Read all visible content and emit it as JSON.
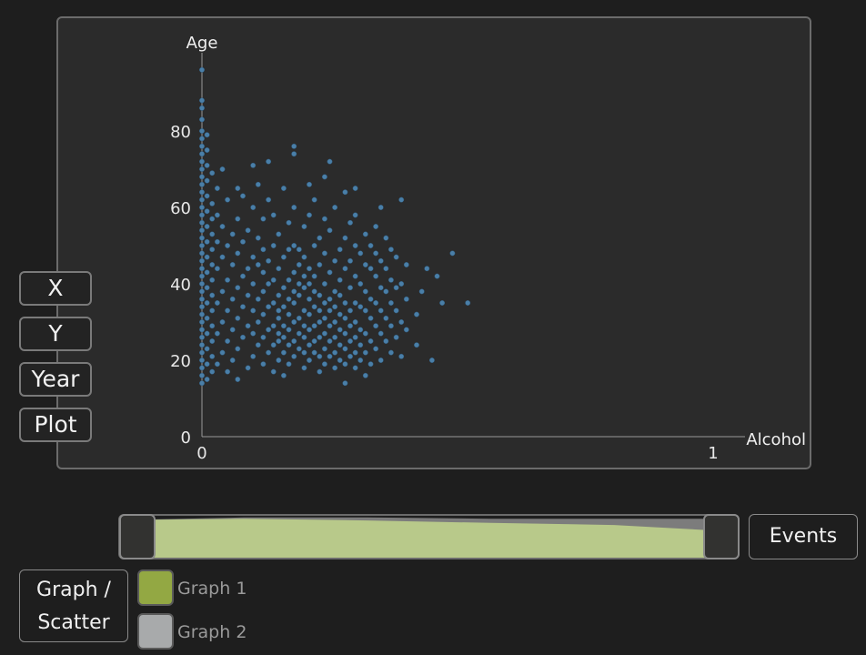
{
  "axis_buttons": {
    "x": "X",
    "y": "Y",
    "year": "Year",
    "plot": "Plot"
  },
  "chart_data": {
    "type": "scatter",
    "xlabel": "Alcohol",
    "ylabel": "Age",
    "xlim": [
      0,
      1
    ],
    "ylim": [
      0,
      100
    ],
    "x_ticks": [
      "0",
      "1"
    ],
    "y_ticks": [
      "0",
      "20",
      "40",
      "60",
      "80"
    ],
    "point_color": "#4a7fa8",
    "points": [
      [
        0.0,
        14
      ],
      [
        0.0,
        16
      ],
      [
        0.0,
        18
      ],
      [
        0.0,
        20
      ],
      [
        0.0,
        22
      ],
      [
        0.0,
        24
      ],
      [
        0.0,
        26
      ],
      [
        0.0,
        28
      ],
      [
        0.0,
        30
      ],
      [
        0.0,
        32
      ],
      [
        0.0,
        34
      ],
      [
        0.0,
        36
      ],
      [
        0.0,
        38
      ],
      [
        0.0,
        40
      ],
      [
        0.0,
        42
      ],
      [
        0.0,
        44
      ],
      [
        0.0,
        46
      ],
      [
        0.0,
        48
      ],
      [
        0.0,
        50
      ],
      [
        0.0,
        52
      ],
      [
        0.0,
        54
      ],
      [
        0.0,
        56
      ],
      [
        0.0,
        58
      ],
      [
        0.0,
        60
      ],
      [
        0.0,
        62
      ],
      [
        0.0,
        64
      ],
      [
        0.0,
        66
      ],
      [
        0.0,
        68
      ],
      [
        0.0,
        70
      ],
      [
        0.0,
        72
      ],
      [
        0.0,
        74
      ],
      [
        0.0,
        76
      ],
      [
        0.0,
        78
      ],
      [
        0.0,
        80
      ],
      [
        0.0,
        83
      ],
      [
        0.0,
        86
      ],
      [
        0.0,
        88
      ],
      [
        0.0,
        96
      ],
      [
        0.01,
        15
      ],
      [
        0.01,
        19
      ],
      [
        0.01,
        23
      ],
      [
        0.01,
        27
      ],
      [
        0.01,
        31
      ],
      [
        0.01,
        35
      ],
      [
        0.01,
        39
      ],
      [
        0.01,
        43
      ],
      [
        0.01,
        47
      ],
      [
        0.01,
        51
      ],
      [
        0.01,
        55
      ],
      [
        0.01,
        59
      ],
      [
        0.01,
        63
      ],
      [
        0.01,
        67
      ],
      [
        0.01,
        71
      ],
      [
        0.01,
        75
      ],
      [
        0.01,
        79
      ],
      [
        0.02,
        17
      ],
      [
        0.02,
        21
      ],
      [
        0.02,
        25
      ],
      [
        0.02,
        29
      ],
      [
        0.02,
        33
      ],
      [
        0.02,
        37
      ],
      [
        0.02,
        41
      ],
      [
        0.02,
        45
      ],
      [
        0.02,
        49
      ],
      [
        0.02,
        53
      ],
      [
        0.02,
        57
      ],
      [
        0.02,
        61
      ],
      [
        0.02,
        69
      ],
      [
        0.03,
        19
      ],
      [
        0.03,
        27
      ],
      [
        0.03,
        35
      ],
      [
        0.03,
        44
      ],
      [
        0.03,
        51
      ],
      [
        0.03,
        58
      ],
      [
        0.03,
        65
      ],
      [
        0.04,
        22
      ],
      [
        0.04,
        30
      ],
      [
        0.04,
        38
      ],
      [
        0.04,
        47
      ],
      [
        0.04,
        55
      ],
      [
        0.04,
        70
      ],
      [
        0.05,
        17
      ],
      [
        0.05,
        25
      ],
      [
        0.05,
        33
      ],
      [
        0.05,
        41
      ],
      [
        0.05,
        50
      ],
      [
        0.05,
        62
      ],
      [
        0.06,
        20
      ],
      [
        0.06,
        28
      ],
      [
        0.06,
        36
      ],
      [
        0.06,
        45
      ],
      [
        0.06,
        53
      ],
      [
        0.07,
        15
      ],
      [
        0.07,
        23
      ],
      [
        0.07,
        31
      ],
      [
        0.07,
        39
      ],
      [
        0.07,
        48
      ],
      [
        0.07,
        57
      ],
      [
        0.07,
        65
      ],
      [
        0.08,
        26
      ],
      [
        0.08,
        34
      ],
      [
        0.08,
        42
      ],
      [
        0.08,
        51
      ],
      [
        0.08,
        63
      ],
      [
        0.09,
        18
      ],
      [
        0.09,
        29
      ],
      [
        0.09,
        37
      ],
      [
        0.09,
        44
      ],
      [
        0.09,
        54
      ],
      [
        0.1,
        21
      ],
      [
        0.1,
        27
      ],
      [
        0.1,
        33
      ],
      [
        0.1,
        40
      ],
      [
        0.1,
        47
      ],
      [
        0.1,
        60
      ],
      [
        0.1,
        71
      ],
      [
        0.11,
        24
      ],
      [
        0.11,
        30
      ],
      [
        0.11,
        36
      ],
      [
        0.11,
        45
      ],
      [
        0.11,
        52
      ],
      [
        0.11,
        66
      ],
      [
        0.12,
        19
      ],
      [
        0.12,
        26
      ],
      [
        0.12,
        32
      ],
      [
        0.12,
        38
      ],
      [
        0.12,
        43
      ],
      [
        0.12,
        49
      ],
      [
        0.12,
        57
      ],
      [
        0.13,
        22
      ],
      [
        0.13,
        28
      ],
      [
        0.13,
        34
      ],
      [
        0.13,
        40
      ],
      [
        0.13,
        46
      ],
      [
        0.13,
        62
      ],
      [
        0.13,
        72
      ],
      [
        0.14,
        17
      ],
      [
        0.14,
        24
      ],
      [
        0.14,
        29
      ],
      [
        0.14,
        35
      ],
      [
        0.14,
        41
      ],
      [
        0.14,
        50
      ],
      [
        0.14,
        58
      ],
      [
        0.15,
        20
      ],
      [
        0.15,
        25
      ],
      [
        0.15,
        27
      ],
      [
        0.15,
        31
      ],
      [
        0.15,
        33
      ],
      [
        0.15,
        37
      ],
      [
        0.15,
        44
      ],
      [
        0.15,
        53
      ],
      [
        0.16,
        16
      ],
      [
        0.16,
        22
      ],
      [
        0.16,
        26
      ],
      [
        0.16,
        29
      ],
      [
        0.16,
        34
      ],
      [
        0.16,
        39
      ],
      [
        0.16,
        47
      ],
      [
        0.16,
        65
      ],
      [
        0.17,
        19
      ],
      [
        0.17,
        24
      ],
      [
        0.17,
        28
      ],
      [
        0.17,
        32
      ],
      [
        0.17,
        36
      ],
      [
        0.17,
        41
      ],
      [
        0.17,
        49
      ],
      [
        0.17,
        56
      ],
      [
        0.18,
        21
      ],
      [
        0.18,
        25
      ],
      [
        0.18,
        30
      ],
      [
        0.18,
        35
      ],
      [
        0.18,
        38
      ],
      [
        0.18,
        43
      ],
      [
        0.18,
        50
      ],
      [
        0.18,
        60
      ],
      [
        0.18,
        74
      ],
      [
        0.18,
        76
      ],
      [
        0.19,
        23
      ],
      [
        0.19,
        27
      ],
      [
        0.19,
        31
      ],
      [
        0.19,
        37
      ],
      [
        0.19,
        40
      ],
      [
        0.19,
        45
      ],
      [
        0.19,
        49
      ],
      [
        0.2,
        18
      ],
      [
        0.2,
        22
      ],
      [
        0.2,
        26
      ],
      [
        0.2,
        29
      ],
      [
        0.2,
        33
      ],
      [
        0.2,
        39
      ],
      [
        0.2,
        42
      ],
      [
        0.2,
        47
      ],
      [
        0.2,
        55
      ],
      [
        0.21,
        20
      ],
      [
        0.21,
        24
      ],
      [
        0.21,
        28
      ],
      [
        0.21,
        32
      ],
      [
        0.21,
        36
      ],
      [
        0.21,
        40
      ],
      [
        0.21,
        44
      ],
      [
        0.21,
        58
      ],
      [
        0.21,
        66
      ],
      [
        0.22,
        22
      ],
      [
        0.22,
        25
      ],
      [
        0.22,
        29
      ],
      [
        0.22,
        34
      ],
      [
        0.22,
        38
      ],
      [
        0.22,
        42
      ],
      [
        0.22,
        50
      ],
      [
        0.22,
        62
      ],
      [
        0.23,
        17
      ],
      [
        0.23,
        21
      ],
      [
        0.23,
        26
      ],
      [
        0.23,
        30
      ],
      [
        0.23,
        33
      ],
      [
        0.23,
        37
      ],
      [
        0.23,
        45
      ],
      [
        0.23,
        52
      ],
      [
        0.24,
        19
      ],
      [
        0.24,
        23
      ],
      [
        0.24,
        27
      ],
      [
        0.24,
        31
      ],
      [
        0.24,
        35
      ],
      [
        0.24,
        40
      ],
      [
        0.24,
        48
      ],
      [
        0.24,
        57
      ],
      [
        0.24,
        68
      ],
      [
        0.25,
        21
      ],
      [
        0.25,
        25
      ],
      [
        0.25,
        29
      ],
      [
        0.25,
        33
      ],
      [
        0.25,
        36
      ],
      [
        0.25,
        43
      ],
      [
        0.25,
        54
      ],
      [
        0.25,
        72
      ],
      [
        0.26,
        18
      ],
      [
        0.26,
        22
      ],
      [
        0.26,
        26
      ],
      [
        0.26,
        30
      ],
      [
        0.26,
        34
      ],
      [
        0.26,
        38
      ],
      [
        0.26,
        46
      ],
      [
        0.26,
        60
      ],
      [
        0.27,
        20
      ],
      [
        0.27,
        24
      ],
      [
        0.27,
        28
      ],
      [
        0.27,
        32
      ],
      [
        0.27,
        37
      ],
      [
        0.27,
        41
      ],
      [
        0.27,
        49
      ],
      [
        0.28,
        14
      ],
      [
        0.28,
        19
      ],
      [
        0.28,
        23
      ],
      [
        0.28,
        27
      ],
      [
        0.28,
        31
      ],
      [
        0.28,
        35
      ],
      [
        0.28,
        44
      ],
      [
        0.28,
        52
      ],
      [
        0.28,
        64
      ],
      [
        0.29,
        21
      ],
      [
        0.29,
        25
      ],
      [
        0.29,
        29
      ],
      [
        0.29,
        33
      ],
      [
        0.29,
        39
      ],
      [
        0.29,
        46
      ],
      [
        0.29,
        56
      ],
      [
        0.3,
        18
      ],
      [
        0.3,
        22
      ],
      [
        0.3,
        26
      ],
      [
        0.3,
        30
      ],
      [
        0.3,
        35
      ],
      [
        0.3,
        42
      ],
      [
        0.3,
        50
      ],
      [
        0.3,
        58
      ],
      [
        0.3,
        65
      ],
      [
        0.31,
        20
      ],
      [
        0.31,
        24
      ],
      [
        0.31,
        28
      ],
      [
        0.31,
        34
      ],
      [
        0.31,
        40
      ],
      [
        0.31,
        48
      ],
      [
        0.32,
        16
      ],
      [
        0.32,
        22
      ],
      [
        0.32,
        27
      ],
      [
        0.32,
        33
      ],
      [
        0.32,
        38
      ],
      [
        0.32,
        45
      ],
      [
        0.32,
        53
      ],
      [
        0.33,
        19
      ],
      [
        0.33,
        25
      ],
      [
        0.33,
        31
      ],
      [
        0.33,
        36
      ],
      [
        0.33,
        44
      ],
      [
        0.33,
        50
      ],
      [
        0.34,
        23
      ],
      [
        0.34,
        29
      ],
      [
        0.34,
        35
      ],
      [
        0.34,
        42
      ],
      [
        0.34,
        48
      ],
      [
        0.34,
        55
      ],
      [
        0.35,
        20
      ],
      [
        0.35,
        27
      ],
      [
        0.35,
        33
      ],
      [
        0.35,
        39
      ],
      [
        0.35,
        46
      ],
      [
        0.35,
        60
      ],
      [
        0.36,
        25
      ],
      [
        0.36,
        31
      ],
      [
        0.36,
        38
      ],
      [
        0.36,
        44
      ],
      [
        0.36,
        52
      ],
      [
        0.37,
        22
      ],
      [
        0.37,
        29
      ],
      [
        0.37,
        35
      ],
      [
        0.37,
        41
      ],
      [
        0.37,
        49
      ],
      [
        0.38,
        26
      ],
      [
        0.38,
        33
      ],
      [
        0.38,
        39
      ],
      [
        0.38,
        47
      ],
      [
        0.39,
        21
      ],
      [
        0.39,
        30
      ],
      [
        0.39,
        40
      ],
      [
        0.39,
        62
      ],
      [
        0.4,
        28
      ],
      [
        0.4,
        36
      ],
      [
        0.4,
        45
      ],
      [
        0.42,
        24
      ],
      [
        0.42,
        32
      ],
      [
        0.43,
        38
      ],
      [
        0.44,
        44
      ],
      [
        0.45,
        20
      ],
      [
        0.46,
        42
      ],
      [
        0.47,
        35
      ],
      [
        0.49,
        48
      ],
      [
        0.52,
        35
      ]
    ]
  },
  "timeline": {
    "graph_1_area": [
      0.9,
      0.93,
      0.89,
      0.83,
      0.78,
      0.62
    ],
    "graph_2_area": [
      0.9,
      0.96,
      0.96,
      0.93,
      0.93,
      0.93
    ]
  },
  "events_label": "Events",
  "mode_button": {
    "line1": "Graph  /",
    "line2": "Scatter"
  },
  "legend": {
    "graph1": {
      "label": "Graph 1",
      "color": "#93a843"
    },
    "graph2": {
      "label": "Graph 2",
      "color": "#a8aaab"
    }
  }
}
